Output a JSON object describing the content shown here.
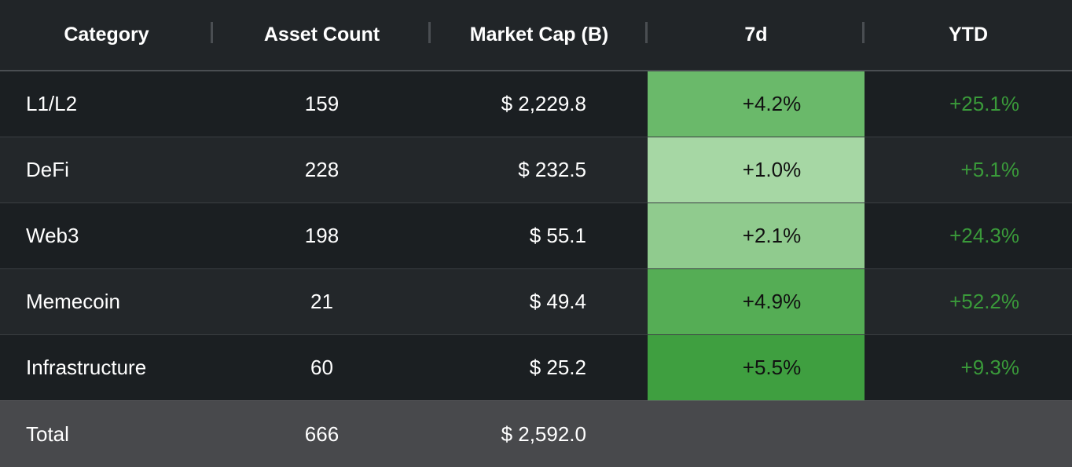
{
  "header": {
    "columns": [
      "Category",
      "Asset Count",
      "Market Cap (B)",
      "7d",
      "YTD"
    ]
  },
  "rows": [
    {
      "category": "L1/L2",
      "asset_count": "159",
      "market_cap": "$ 2,229.8",
      "d7": "+4.2%",
      "ytd": "+25.1%",
      "d7_color": "#6ab96a"
    },
    {
      "category": "DeFi",
      "asset_count": "228",
      "market_cap": "$ 232.5",
      "d7": "+1.0%",
      "ytd": "+5.1%",
      "d7_color": "#a6d7a4"
    },
    {
      "category": "Web3",
      "asset_count": "198",
      "market_cap": "$ 55.1",
      "d7": "+2.1%",
      "ytd": "+24.3%",
      "d7_color": "#90cb8e"
    },
    {
      "category": "Memecoin",
      "asset_count": "21",
      "market_cap": "$ 49.4",
      "d7": "+4.9%",
      "ytd": "+52.2%",
      "d7_color": "#55ad55"
    },
    {
      "category": "Infrastructure",
      "asset_count": "60",
      "market_cap": "$ 25.2",
      "d7": "+5.5%",
      "ytd": "+9.3%",
      "d7_color": "#3f9f40"
    }
  ],
  "total": {
    "label": "Total",
    "asset_count": "666",
    "market_cap": "$ 2,592.0"
  },
  "colors": {
    "ytd_text": "#3a9a3a",
    "header_bg": "#212528",
    "row_bg_dark": "#1b1f22",
    "row_bg_alt": "#23272a",
    "total_bg": "#48494c"
  }
}
